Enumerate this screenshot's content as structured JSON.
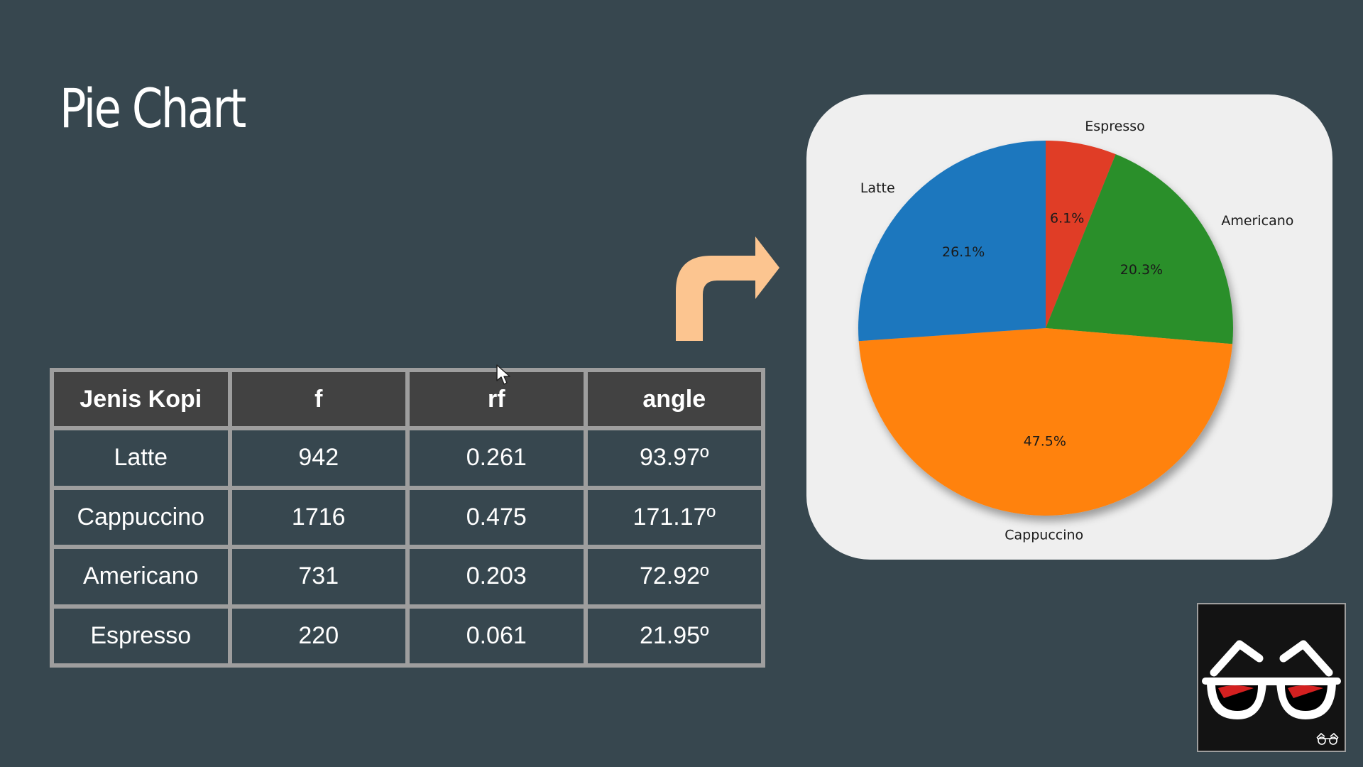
{
  "slide": {
    "title": "Pie Chart"
  },
  "table": {
    "headers": [
      "Jenis Kopi",
      "f",
      "rf",
      "angle"
    ],
    "rows": [
      [
        "Latte",
        "942",
        "0.261",
        "93.97º"
      ],
      [
        "Cappuccino",
        "1716",
        "0.475",
        "171.17º"
      ],
      [
        "Americano",
        "731",
        "0.203",
        "72.92º"
      ],
      [
        "Espresso",
        "220",
        "0.061",
        "21.95º"
      ]
    ]
  },
  "chart_data": {
    "type": "pie",
    "title": "",
    "start_angle_deg": 90,
    "direction": "clockwise",
    "slices": [
      {
        "label": "Espresso",
        "value": 220,
        "pct_label": "6.1%",
        "color": "#e03c28"
      },
      {
        "label": "Americano",
        "value": 731,
        "pct_label": "20.3%",
        "color": "#2a8f2a"
      },
      {
        "label": "Cappuccino",
        "value": 1716,
        "pct_label": "47.5%",
        "color": "#ff8210"
      },
      {
        "label": "Latte",
        "value": 942,
        "pct_label": "26.1%",
        "color": "#1f77be"
      }
    ]
  },
  "colors": {
    "background": "#37474f",
    "header_cell": "#424242",
    "grid_border": "#9e9e9e",
    "arrow": "#fcc590",
    "chart_card": "#efefef"
  },
  "icons": {
    "arrow": "turn-right-arrow-icon",
    "mascot": "glasses-mascot-icon",
    "cursor": "mouse-pointer-icon"
  }
}
